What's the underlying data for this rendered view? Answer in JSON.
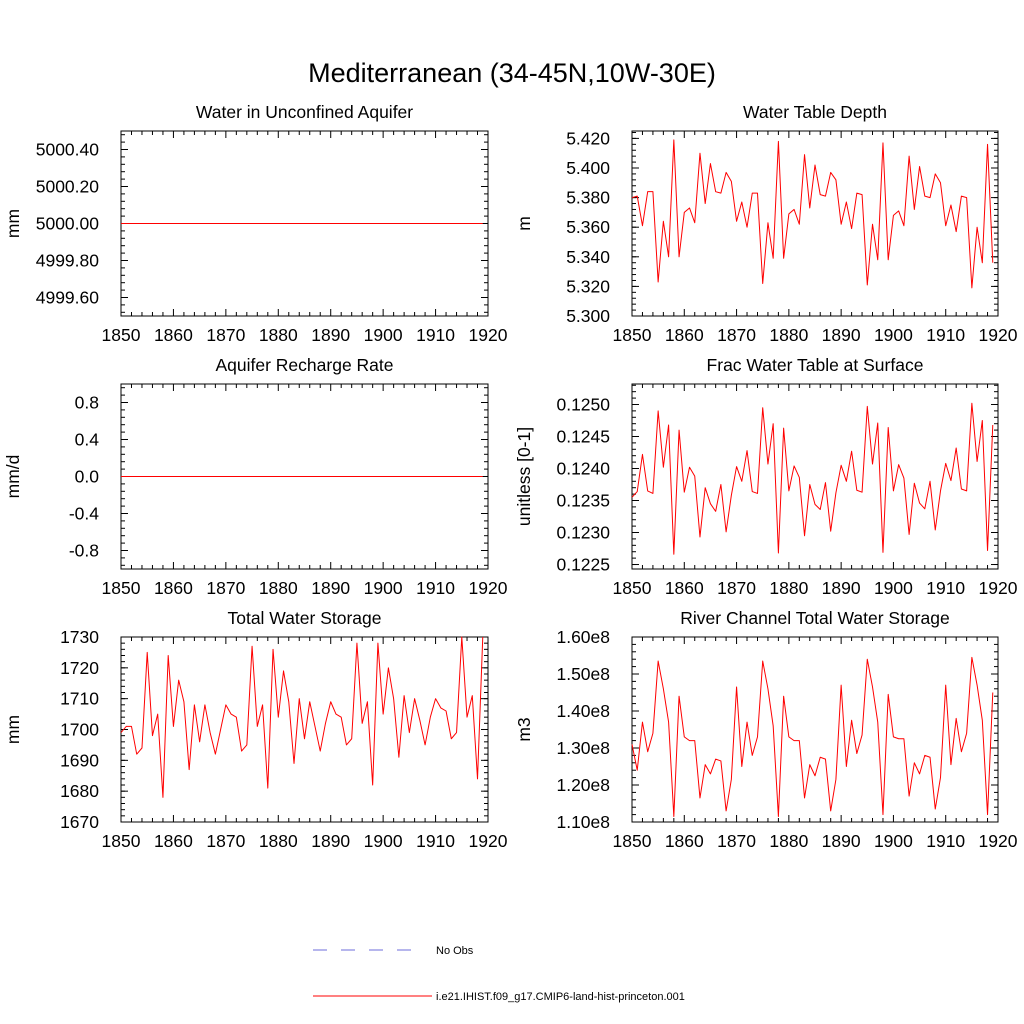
{
  "page_title": "Mediterranean (34-45N,10W-30E)",
  "legend": [
    {
      "label": "No Obs",
      "color": "#6d6ddb",
      "style": "dashed"
    },
    {
      "label": "i.e21.IHIST.f09_g17.CMIP6-land-hist-princeton.001",
      "color": "#ff0000",
      "style": "solid"
    }
  ],
  "chart_data": [
    {
      "type": "line",
      "title": "Water in Unconfined Aquifer",
      "ylabel": "mm",
      "xlim": [
        1850,
        1920
      ],
      "ylim": [
        4999.5,
        5000.5
      ],
      "xticks": [
        1850,
        1860,
        1870,
        1880,
        1890,
        1900,
        1910,
        1920
      ],
      "yticks": [
        4999.6,
        4999.8,
        5000.0,
        5000.2,
        5000.4
      ],
      "ytick_labels": [
        "4999.60",
        "4999.80",
        "5000.00",
        "5000.20",
        "5000.40"
      ],
      "x_start": 1850,
      "x_step": 1,
      "series": [
        {
          "color": "#ff0000",
          "values": [
            5000,
            5000,
            5000,
            5000,
            5000,
            5000,
            5000,
            5000,
            5000,
            5000,
            5000,
            5000,
            5000,
            5000,
            5000,
            5000,
            5000,
            5000,
            5000,
            5000,
            5000,
            5000,
            5000,
            5000,
            5000,
            5000,
            5000,
            5000,
            5000,
            5000,
            5000,
            5000,
            5000,
            5000,
            5000,
            5000,
            5000,
            5000,
            5000,
            5000,
            5000,
            5000,
            5000,
            5000,
            5000,
            5000,
            5000,
            5000,
            5000,
            5000,
            5000,
            5000,
            5000,
            5000,
            5000,
            5000,
            5000,
            5000,
            5000,
            5000,
            5000,
            5000,
            5000,
            5000,
            5000,
            5000,
            5000,
            5000,
            5000,
            5000
          ]
        }
      ]
    },
    {
      "type": "line",
      "title": "Water Table Depth",
      "ylabel": "m",
      "xlim": [
        1850,
        1920
      ],
      "ylim": [
        5.3,
        5.425
      ],
      "xticks": [
        1850,
        1860,
        1870,
        1880,
        1890,
        1900,
        1910,
        1920
      ],
      "yticks": [
        5.3,
        5.32,
        5.34,
        5.36,
        5.38,
        5.4,
        5.42
      ],
      "ytick_labels": [
        "5.300",
        "5.320",
        "5.340",
        "5.360",
        "5.380",
        "5.400",
        "5.420"
      ],
      "x_start": 1850,
      "x_step": 1,
      "series": [
        {
          "color": "#ff0000",
          "values": [
            5.38,
            5.381,
            5.361,
            5.384,
            5.384,
            5.323,
            5.364,
            5.34,
            5.419,
            5.34,
            5.37,
            5.373,
            5.363,
            5.41,
            5.376,
            5.403,
            5.384,
            5.383,
            5.397,
            5.391,
            5.364,
            5.377,
            5.36,
            5.383,
            5.383,
            5.322,
            5.363,
            5.339,
            5.418,
            5.339,
            5.369,
            5.372,
            5.362,
            5.409,
            5.373,
            5.402,
            5.382,
            5.381,
            5.397,
            5.392,
            5.362,
            5.377,
            5.359,
            5.383,
            5.382,
            5.321,
            5.362,
            5.338,
            5.417,
            5.338,
            5.368,
            5.371,
            5.361,
            5.408,
            5.372,
            5.401,
            5.381,
            5.38,
            5.396,
            5.39,
            5.361,
            5.375,
            5.357,
            5.381,
            5.38,
            5.319,
            5.36,
            5.336,
            5.416,
            5.336
          ]
        }
      ]
    },
    {
      "type": "line",
      "title": "Aquifer Recharge Rate",
      "ylabel": "mm/d",
      "xlim": [
        1850,
        1920
      ],
      "ylim": [
        -1.0,
        1.0
      ],
      "xticks": [
        1850,
        1860,
        1870,
        1880,
        1890,
        1900,
        1910,
        1920
      ],
      "yticks": [
        -0.8,
        -0.4,
        0.0,
        0.4,
        0.8
      ],
      "ytick_labels": [
        "-0.8",
        "-0.4",
        "0.0",
        "0.4",
        "0.8"
      ],
      "x_start": 1850,
      "x_step": 1,
      "series": [
        {
          "color": "#ff0000",
          "values": [
            0,
            0,
            0,
            0,
            0,
            0,
            0,
            0,
            0,
            0,
            0,
            0,
            0,
            0,
            0,
            0,
            0,
            0,
            0,
            0,
            0,
            0,
            0,
            0,
            0,
            0,
            0,
            0,
            0,
            0,
            0,
            0,
            0,
            0,
            0,
            0,
            0,
            0,
            0,
            0,
            0,
            0,
            0,
            0,
            0,
            0,
            0,
            0,
            0,
            0,
            0,
            0,
            0,
            0,
            0,
            0,
            0,
            0,
            0,
            0,
            0,
            0,
            0,
            0,
            0,
            0,
            0,
            0,
            0,
            0
          ]
        }
      ]
    },
    {
      "type": "line",
      "title": "Frac Water Table at Surface",
      "ylabel": "unitless [0-1]",
      "xlim": [
        1850,
        1920
      ],
      "ylim": [
        0.12243,
        0.12532
      ],
      "xticks": [
        1850,
        1860,
        1870,
        1880,
        1890,
        1900,
        1910,
        1920
      ],
      "yticks": [
        0.1225,
        0.123,
        0.1235,
        0.124,
        0.1245,
        0.125
      ],
      "ytick_labels": [
        "0.1225",
        "0.1230",
        "0.1235",
        "0.1240",
        "0.1245",
        "0.1250"
      ],
      "x_start": 1850,
      "x_step": 1,
      "series": [
        {
          "color": "#ff0000",
          "values": [
            0.12355,
            0.12364,
            0.12422,
            0.12365,
            0.12361,
            0.1249,
            0.12402,
            0.12468,
            0.12266,
            0.1246,
            0.12363,
            0.12402,
            0.12388,
            0.12293,
            0.1237,
            0.12345,
            0.12333,
            0.12375,
            0.12301,
            0.12358,
            0.12403,
            0.1238,
            0.12428,
            0.12364,
            0.12361,
            0.12495,
            0.12407,
            0.1247,
            0.12268,
            0.12463,
            0.12365,
            0.12404,
            0.12386,
            0.12295,
            0.12375,
            0.12344,
            0.12336,
            0.12378,
            0.12302,
            0.12362,
            0.12405,
            0.1238,
            0.12427,
            0.12366,
            0.12363,
            0.12497,
            0.12407,
            0.12471,
            0.12269,
            0.12464,
            0.12365,
            0.12406,
            0.12385,
            0.12297,
            0.12377,
            0.12346,
            0.12337,
            0.1238,
            0.12304,
            0.12365,
            0.12408,
            0.12381,
            0.12432,
            0.12368,
            0.12365,
            0.12502,
            0.12411,
            0.12475,
            0.12272,
            0.12468
          ]
        }
      ]
    },
    {
      "type": "line",
      "title": "Total Water Storage",
      "ylabel": "mm",
      "xlim": [
        1850,
        1920
      ],
      "ylim": [
        1670,
        1730
      ],
      "xticks": [
        1850,
        1860,
        1870,
        1880,
        1890,
        1900,
        1910,
        1920
      ],
      "yticks": [
        1670,
        1680,
        1690,
        1700,
        1710,
        1720,
        1730
      ],
      "ytick_labels": [
        "1670",
        "1680",
        "1690",
        "1700",
        "1710",
        "1720",
        "1730"
      ],
      "x_start": 1850,
      "x_step": 1,
      "series": [
        {
          "color": "#ff0000",
          "values": [
            1699,
            1701,
            1701,
            1692,
            1694,
            1725,
            1698,
            1705,
            1678,
            1724,
            1701,
            1716,
            1709,
            1687,
            1708,
            1696,
            1708,
            1699,
            1692,
            1700,
            1708,
            1705,
            1704,
            1693,
            1695,
            1727,
            1701,
            1708,
            1681,
            1726,
            1704,
            1719,
            1709,
            1689,
            1710,
            1697,
            1709,
            1701,
            1693,
            1702,
            1709,
            1705,
            1704,
            1695,
            1697,
            1728,
            1702,
            1709,
            1682,
            1728,
            1705,
            1720,
            1710,
            1691,
            1711,
            1699,
            1710,
            1703,
            1695,
            1704,
            1710,
            1707,
            1706,
            1697,
            1699,
            1730,
            1704,
            1711,
            1684,
            1730
          ]
        }
      ]
    },
    {
      "type": "line",
      "title": "River Channel Total Water Storage",
      "ylabel": "m3",
      "xlim": [
        1850,
        1920
      ],
      "ylim": [
        110000000,
        160000000
      ],
      "xticks": [
        1850,
        1860,
        1870,
        1880,
        1890,
        1900,
        1910,
        1920
      ],
      "yticks": [
        110000000,
        120000000,
        130000000,
        140000000,
        150000000,
        160000000
      ],
      "ytick_labels": [
        "1.10e8",
        "1.20e8",
        "1.30e8",
        "1.40e8",
        "1.50e8",
        "1.60e8"
      ],
      "x_start": 1850,
      "x_step": 1,
      "series": [
        {
          "color": "#ff0000",
          "values": [
            131000000,
            124000000,
            137000000,
            129000000,
            134000000,
            153500000,
            146000000,
            137000000,
            111500000,
            144000000,
            133000000,
            132000000,
            132000000,
            116500000,
            125500000,
            123000000,
            127000000,
            126500000,
            113000000,
            121500000,
            146500000,
            125000000,
            137000000,
            128000000,
            133000000,
            153500000,
            146000000,
            136000000,
            111500000,
            144000000,
            133000000,
            132000000,
            132000000,
            116500000,
            125500000,
            122500000,
            127500000,
            127000000,
            113000000,
            121500000,
            147000000,
            125000000,
            137500000,
            128500000,
            133500000,
            154000000,
            146500000,
            137000000,
            112000000,
            144500000,
            133000000,
            132500000,
            132500000,
            117000000,
            126000000,
            123000000,
            128000000,
            127500000,
            113500000,
            122000000,
            147000000,
            125500000,
            138000000,
            129000000,
            134000000,
            154500000,
            147000000,
            137500000,
            112000000,
            145000000
          ]
        }
      ]
    }
  ]
}
